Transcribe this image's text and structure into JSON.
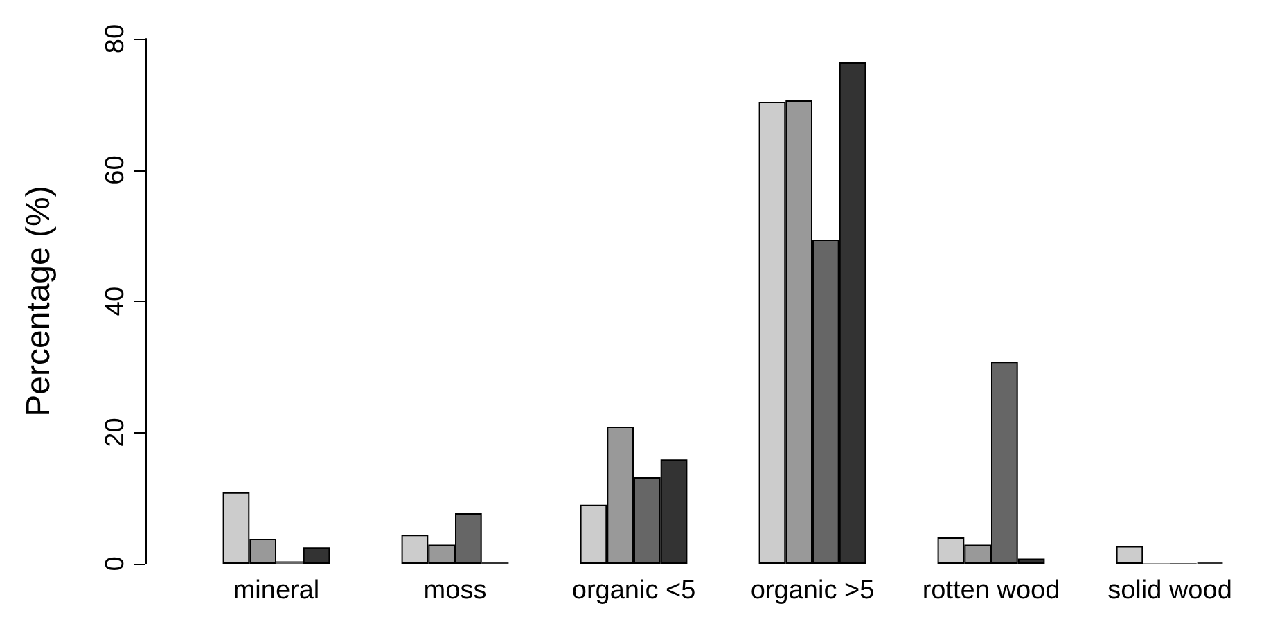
{
  "chart_data": {
    "type": "bar",
    "ylabel": "Percentage (%)",
    "categories": [
      "mineral",
      "moss",
      "organic <5",
      "organic >5",
      "rotten wood",
      "solid wood"
    ],
    "series": [
      {
        "color": "#cccccc",
        "values": [
          10.9,
          4.4,
          9.0,
          70.4,
          4.0,
          2.7
        ]
      },
      {
        "color": "#999999",
        "values": [
          3.8,
          2.9,
          20.9,
          70.6,
          2.9,
          0
        ]
      },
      {
        "color": "#666666",
        "values": [
          0.4,
          7.7,
          13.2,
          49.4,
          30.8,
          0
        ]
      },
      {
        "color": "#333333",
        "values": [
          2.5,
          0.3,
          15.9,
          76.4,
          0.8,
          0.2
        ]
      }
    ],
    "ylim": [
      0,
      80
    ],
    "yticks": [
      0,
      20,
      40,
      60,
      80
    ],
    "grid": false
  }
}
